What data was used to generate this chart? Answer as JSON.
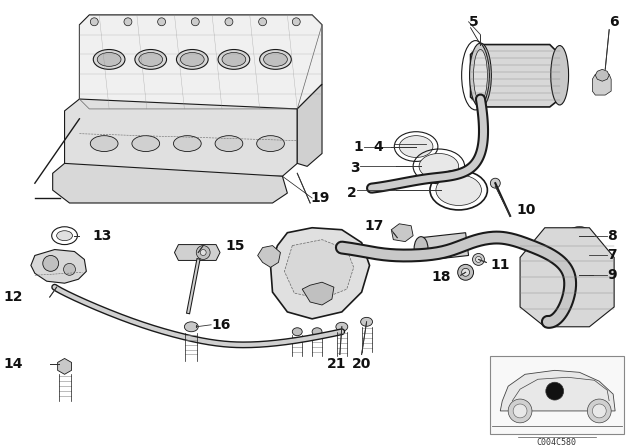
{
  "bg_color": "#ffffff",
  "diagram_code": "C004C580",
  "lc": "#1a1a1a",
  "gray_light": "#e8e8e8",
  "gray_mid": "#cccccc",
  "gray_dark": "#999999"
}
